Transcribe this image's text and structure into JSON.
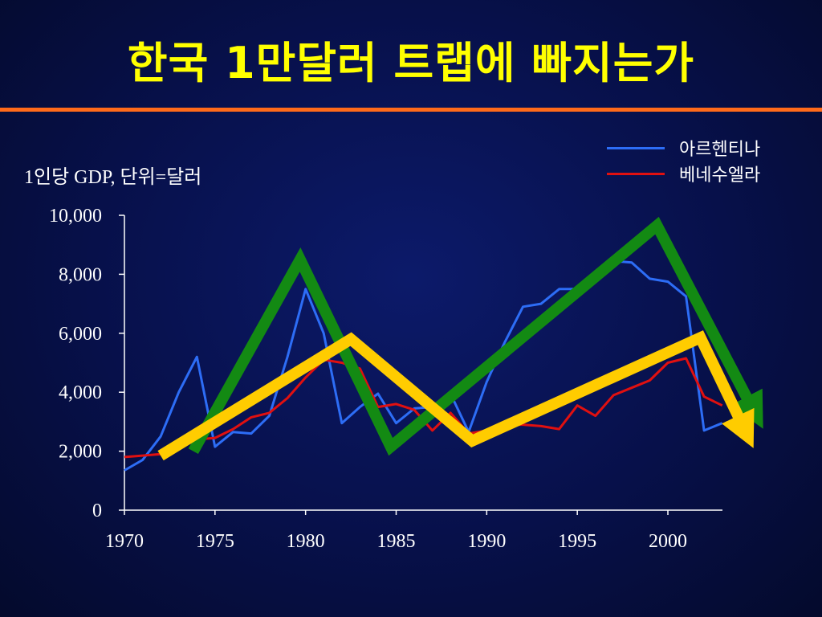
{
  "slide": {
    "title": "한국 1만달러 트랩에 빠지는가",
    "y_axis_label": "1인당 GDP, 단위=달러"
  },
  "colors": {
    "title": "#ffff00",
    "rule": "#ff6a1a",
    "argentina": "#2d6df6",
    "venezuela": "#e01010",
    "green_arrow": "#138a13",
    "yellow_arrow": "#ffcc00"
  },
  "legend": [
    {
      "label": "아르헨티나",
      "color": "#2d6df6"
    },
    {
      "label": "베네수엘라",
      "color": "#e01010"
    }
  ],
  "chart_data": {
    "type": "line",
    "ylim": [
      0,
      10000
    ],
    "xlim": [
      1970,
      2003
    ],
    "y_ticks": [
      0,
      2000,
      4000,
      6000,
      8000,
      10000
    ],
    "y_tick_labels": [
      "0",
      "2,000",
      "4,000",
      "6,000",
      "8,000",
      "10,000"
    ],
    "x_ticks": [
      1970,
      1975,
      1980,
      1985,
      1990,
      1995,
      2000
    ],
    "x_tick_labels": [
      "1970",
      "1975",
      "1980",
      "1985",
      "1990",
      "1995",
      "2000"
    ],
    "series": [
      {
        "name": "아르헨티나",
        "color": "#2d6df6",
        "x": [
          1970,
          1971,
          1972,
          1973,
          1974,
          1975,
          1976,
          1977,
          1978,
          1979,
          1980,
          1981,
          1982,
          1983,
          1984,
          1985,
          1986,
          1987,
          1988,
          1989,
          1990,
          1991,
          1992,
          1993,
          1994,
          1995,
          1996,
          1997,
          1998,
          1999,
          2000,
          2001,
          2002,
          2003
        ],
        "y": [
          1350,
          1700,
          2500,
          4000,
          5200,
          2150,
          2650,
          2600,
          3200,
          5200,
          7500,
          6000,
          2950,
          3500,
          3950,
          2950,
          3450,
          3500,
          3950,
          2650,
          4350,
          5700,
          6900,
          7000,
          7500,
          7500,
          7800,
          8450,
          8400,
          7850,
          7750,
          7250,
          2700,
          2950
        ]
      },
      {
        "name": "베네수엘라",
        "color": "#e01010",
        "x": [
          1970,
          1971,
          1972,
          1973,
          1974,
          1975,
          1976,
          1977,
          1978,
          1979,
          1980,
          1981,
          1982,
          1983,
          1984,
          1985,
          1986,
          1987,
          1988,
          1989,
          1990,
          1991,
          1992,
          1993,
          1994,
          1995,
          1996,
          1997,
          1998,
          1999,
          2000,
          2001,
          2002,
          2003
        ],
        "y": [
          1800,
          1850,
          1900,
          2100,
          2400,
          2450,
          2750,
          3150,
          3300,
          3800,
          4500,
          5100,
          5000,
          4800,
          3500,
          3600,
          3400,
          2700,
          3300,
          2600,
          2700,
          2900,
          2900,
          2850,
          2750,
          3550,
          3200,
          3900,
          4150,
          4400,
          5000,
          5150,
          3850,
          3550
        ]
      }
    ],
    "annotations": [
      {
        "name": "green-trend-arrow",
        "color": "#138a13",
        "x": [
          1973.8,
          1979.7,
          1984.7,
          1999.4,
          2004.8
        ],
        "y": [
          2000,
          8500,
          2150,
          9650,
          3300
        ]
      },
      {
        "name": "yellow-trend-arrow",
        "color": "#ffcc00",
        "x": [
          1972.0,
          1982.5,
          1989.2,
          2001.8,
          2004.3
        ],
        "y": [
          1850,
          5800,
          2350,
          5850,
          2650
        ]
      }
    ]
  }
}
